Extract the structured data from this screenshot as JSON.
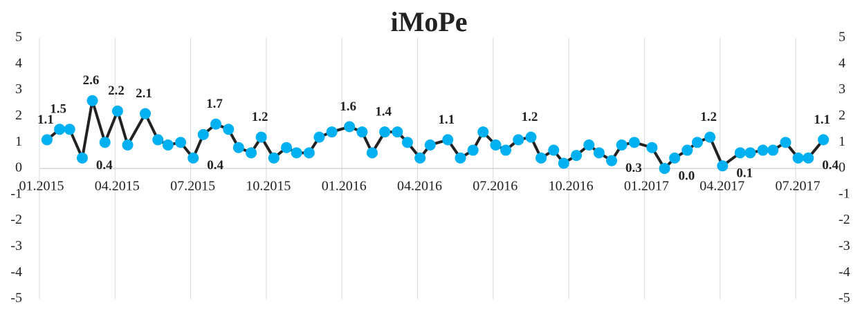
{
  "chart_data": {
    "type": "line",
    "title": "iMoPe",
    "x": [
      0.3,
      0.8,
      1.2,
      1.7,
      2.1,
      2.6,
      3.1,
      3.5,
      4.2,
      4.7,
      5.1,
      5.6,
      6.1,
      6.5,
      7.0,
      7.5,
      7.9,
      8.4,
      8.8,
      9.3,
      9.8,
      10.2,
      10.7,
      11.1,
      11.6,
      12.3,
      12.8,
      13.2,
      13.7,
      14.2,
      14.6,
      15.1,
      15.5,
      16.2,
      16.7,
      17.2,
      17.6,
      18.1,
      18.5,
      19.0,
      19.5,
      19.9,
      20.4,
      20.8,
      21.3,
      21.8,
      22.2,
      22.7,
      23.1,
      23.6,
      24.3,
      24.8,
      25.2,
      25.7,
      26.1,
      26.6,
      27.1,
      27.8,
      28.2,
      28.7,
      29.1,
      29.6,
      30.1,
      30.5,
      31.1
    ],
    "series": [
      {
        "name": "iMoPe",
        "color": "#00b0f0",
        "line_color": "#222222",
        "values": [
          1.1,
          1.5,
          1.5,
          0.4,
          2.6,
          1.0,
          2.2,
          0.9,
          2.1,
          1.1,
          0.9,
          1.0,
          0.4,
          1.3,
          1.7,
          1.5,
          0.8,
          0.6,
          1.2,
          0.4,
          0.8,
          0.6,
          0.6,
          1.2,
          1.4,
          1.6,
          1.4,
          0.6,
          1.4,
          1.4,
          1.0,
          0.4,
          0.9,
          1.1,
          0.4,
          0.7,
          1.4,
          0.9,
          0.7,
          1.1,
          1.2,
          0.4,
          0.7,
          0.2,
          0.5,
          0.9,
          0.6,
          0.3,
          0.9,
          1.0,
          0.8,
          0.0,
          0.4,
          0.7,
          1.0,
          1.2,
          0.1,
          0.6,
          0.6,
          0.7,
          0.7,
          1.0,
          0.4,
          0.4,
          1.1
        ],
        "value_labels": [
          "1.1",
          "1.5",
          null,
          "0.4",
          "2.6",
          null,
          "2.2",
          null,
          "2.1",
          null,
          null,
          null,
          "0.4",
          null,
          "1.7",
          null,
          null,
          null,
          "1.2",
          null,
          null,
          null,
          null,
          null,
          null,
          "1.6",
          null,
          null,
          "1.4",
          null,
          null,
          null,
          null,
          "1.1",
          null,
          null,
          null,
          null,
          null,
          null,
          "1.2",
          null,
          null,
          null,
          null,
          null,
          null,
          "0.3",
          null,
          null,
          null,
          "0.0",
          null,
          null,
          null,
          "1.2",
          "0.1",
          null,
          null,
          null,
          null,
          null,
          null,
          "0.4",
          "1.1"
        ]
      }
    ],
    "xlim": [
      0,
      31.4
    ],
    "xticks": [
      {
        "value": 0,
        "label": "01.2015"
      },
      {
        "value": 3,
        "label": "04.2015"
      },
      {
        "value": 6,
        "label": "07.2015"
      },
      {
        "value": 9,
        "label": "10.2015"
      },
      {
        "value": 12,
        "label": "01.2016"
      },
      {
        "value": 15,
        "label": "04.2016"
      },
      {
        "value": 18,
        "label": "07.2016"
      },
      {
        "value": 21,
        "label": "10.2016"
      },
      {
        "value": 24,
        "label": "01.2017"
      },
      {
        "value": 27,
        "label": "04.2017"
      },
      {
        "value": 30,
        "label": "07.2017"
      }
    ],
    "ylim": [
      -5,
      5
    ],
    "yticks": [
      -5,
      -4,
      -3,
      -2,
      -1,
      0,
      1,
      2,
      3,
      4,
      5
    ],
    "y2lim": [
      -5,
      5
    ],
    "y2ticks": [
      -5,
      -4,
      -3,
      -2,
      -1,
      0,
      1,
      2,
      3,
      4,
      5
    ],
    "grid": true
  }
}
